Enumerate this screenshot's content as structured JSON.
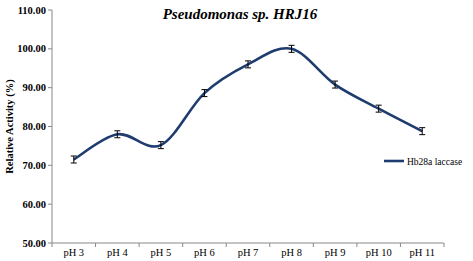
{
  "chart_data": {
    "type": "line",
    "title": "Pseudomonas sp. HRJ16",
    "y_label": "Relative Activity (%)",
    "categories": [
      "pH 3",
      "pH 4",
      "pH 5",
      "pH 6",
      "pH 7",
      "pH 8",
      "pH 9",
      "pH 10",
      "pH 11"
    ],
    "series": [
      {
        "name": "Hb28a laccase",
        "color": "#1f3c6e",
        "values": [
          71.5,
          78.0,
          75.2,
          88.6,
          96.0,
          100.0,
          90.8,
          84.6,
          78.8
        ],
        "errors": [
          0.9,
          0.9,
          0.9,
          0.9,
          0.9,
          0.9,
          0.9,
          0.9,
          0.9
        ]
      }
    ],
    "ylim": [
      50,
      110
    ],
    "yticks": [
      {
        "value": 50,
        "label": "50.00"
      },
      {
        "value": 60,
        "label": "60.00"
      },
      {
        "value": 70,
        "label": "70.00"
      },
      {
        "value": 80,
        "label": "80.00"
      },
      {
        "value": 90,
        "label": "90.00"
      },
      {
        "value": 100,
        "label": "100.00"
      },
      {
        "value": 110,
        "label": "110.00"
      }
    ],
    "grid": false,
    "legend": "right",
    "line_style": "smooth"
  }
}
